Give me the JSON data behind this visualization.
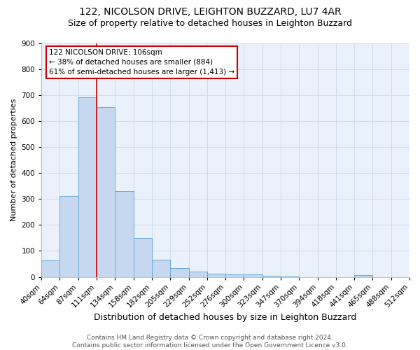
{
  "title1": "122, NICOLSON DRIVE, LEIGHTON BUZZARD, LU7 4AR",
  "title2": "Size of property relative to detached houses in Leighton Buzzard",
  "xlabel": "Distribution of detached houses by size in Leighton Buzzard",
  "ylabel": "Number of detached properties",
  "categories": [
    "40sqm",
    "64sqm",
    "87sqm",
    "111sqm",
    "134sqm",
    "158sqm",
    "182sqm",
    "205sqm",
    "229sqm",
    "252sqm",
    "276sqm",
    "300sqm",
    "323sqm",
    "347sqm",
    "370sqm",
    "394sqm",
    "418sqm",
    "441sqm",
    "465sqm",
    "488sqm",
    "512sqm"
  ],
  "bar_heights": [
    64,
    310,
    690,
    654,
    330,
    150,
    65,
    35,
    20,
    12,
    10,
    10,
    5,
    2,
    0,
    0,
    0,
    8,
    0,
    0
  ],
  "bar_color": "#c5d8f0",
  "bar_edge_color": "#6aaad4",
  "property_bin_index": 2,
  "red_line_color": "#cc0000",
  "annotation_text": "122 NICOLSON DRIVE: 106sqm\n← 38% of detached houses are smaller (884)\n61% of semi-detached houses are larger (1,413) →",
  "annotation_box_color": "#ffffff",
  "annotation_box_edge_color": "#cc0000",
  "ylim": [
    0,
    900
  ],
  "yticks": [
    0,
    100,
    200,
    300,
    400,
    500,
    600,
    700,
    800,
    900
  ],
  "footer_line1": "Contains HM Land Registry data © Crown copyright and database right 2024.",
  "footer_line2": "Contains public sector information licensed under the Open Government Licence v3.0.",
  "bg_color": "#ffffff",
  "grid_color": "#c8d8e8",
  "title1_fontsize": 10,
  "title2_fontsize": 9,
  "xlabel_fontsize": 9,
  "ylabel_fontsize": 8,
  "tick_fontsize": 7.5,
  "footer_fontsize": 6.5
}
